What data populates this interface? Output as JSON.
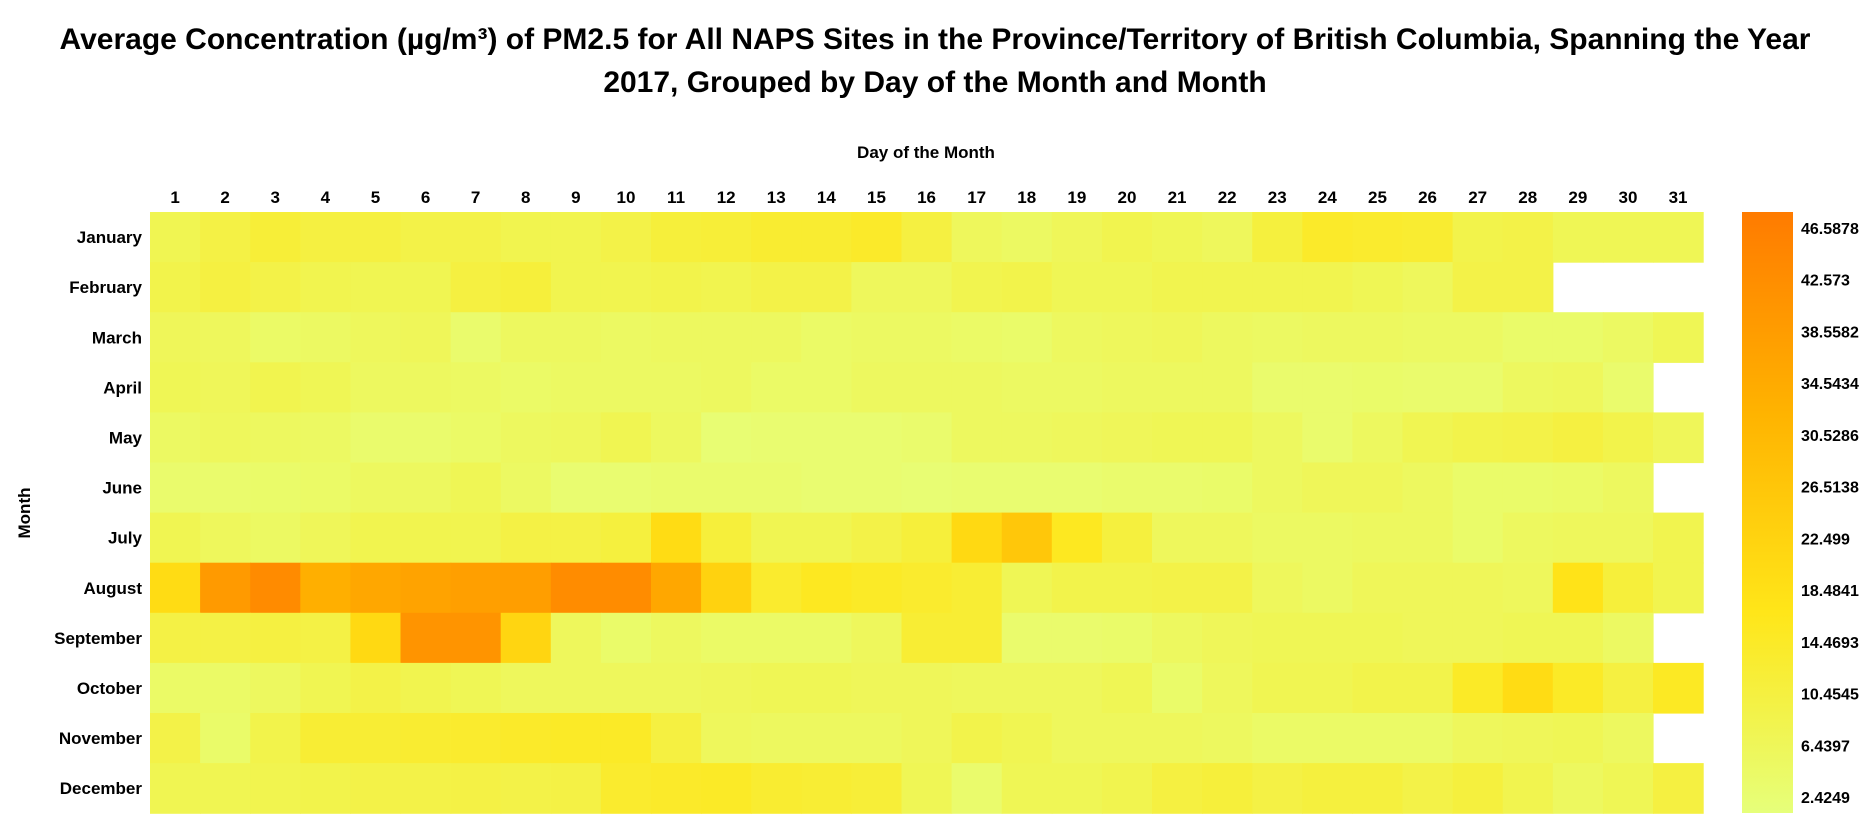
{
  "chart_data": {
    "type": "heatmap",
    "title_line1": "Average Concentration (µg/m³) of PM2.5 for All NAPS Sites in the Province/Territory of British Columbia, Spanning the Year",
    "title_line2": "2017, Grouped by Day of the Month and Month",
    "xlabel": "Day of the Month",
    "ylabel": "Month",
    "x_categories": [
      "1",
      "2",
      "3",
      "4",
      "5",
      "6",
      "7",
      "8",
      "9",
      "10",
      "11",
      "12",
      "13",
      "14",
      "15",
      "16",
      "17",
      "18",
      "19",
      "20",
      "21",
      "22",
      "23",
      "24",
      "25",
      "26",
      "27",
      "28",
      "29",
      "30",
      "31"
    ],
    "y_categories": [
      "January",
      "February",
      "March",
      "April",
      "May",
      "June",
      "July",
      "August",
      "September",
      "October",
      "November",
      "December"
    ],
    "values": [
      [
        8.5,
        10.5,
        12.5,
        11.0,
        11.0,
        10.0,
        10.0,
        9.0,
        9.0,
        10.0,
        12.0,
        12.5,
        13.5,
        13.5,
        14.5,
        11.0,
        7.0,
        6.0,
        7.5,
        9.0,
        8.0,
        7.0,
        11.5,
        14.5,
        14.0,
        13.5,
        9.5,
        10.0,
        8.0,
        8.0,
        8.0
      ],
      [
        9.5,
        11.0,
        10.0,
        9.0,
        8.5,
        8.5,
        11.0,
        12.0,
        9.0,
        9.0,
        9.5,
        9.0,
        10.0,
        10.0,
        7.0,
        7.0,
        9.0,
        9.5,
        8.0,
        8.0,
        9.0,
        9.0,
        9.0,
        9.0,
        8.0,
        7.0,
        10.0,
        10.0,
        null,
        null,
        null
      ],
      [
        7.5,
        7.0,
        5.5,
        6.0,
        7.0,
        7.5,
        4.5,
        6.5,
        6.5,
        6.0,
        6.5,
        6.5,
        6.5,
        5.5,
        6.0,
        6.0,
        5.5,
        5.0,
        6.5,
        7.0,
        7.5,
        6.5,
        6.0,
        6.5,
        6.5,
        6.0,
        6.0,
        5.0,
        5.0,
        6.0,
        8.0
      ],
      [
        8.0,
        7.5,
        9.0,
        8.0,
        6.5,
        6.5,
        6.0,
        5.5,
        6.0,
        6.0,
        6.0,
        6.5,
        5.5,
        5.5,
        6.5,
        6.5,
        6.5,
        6.0,
        6.0,
        6.5,
        6.5,
        6.5,
        4.5,
        4.5,
        5.0,
        4.5,
        4.5,
        6.5,
        7.0,
        4.5,
        null
      ],
      [
        6.0,
        7.0,
        6.5,
        6.0,
        4.5,
        4.5,
        5.5,
        6.5,
        7.0,
        8.5,
        6.5,
        3.5,
        4.0,
        4.0,
        4.0,
        4.5,
        6.5,
        6.5,
        7.0,
        7.5,
        8.0,
        8.0,
        6.5,
        4.5,
        6.5,
        8.5,
        9.5,
        10.0,
        11.0,
        9.5,
        7.5
      ],
      [
        4.5,
        4.5,
        5.0,
        5.5,
        6.5,
        6.5,
        8.0,
        6.0,
        4.0,
        4.0,
        4.5,
        4.5,
        4.5,
        4.0,
        4.0,
        3.5,
        4.0,
        4.0,
        4.0,
        4.5,
        4.5,
        5.0,
        6.5,
        7.5,
        7.5,
        6.5,
        5.0,
        5.0,
        5.5,
        6.5,
        null
      ],
      [
        8.5,
        7.0,
        6.0,
        7.5,
        9.0,
        9.0,
        9.0,
        10.5,
        10.5,
        11.5,
        20.0,
        12.0,
        8.5,
        8.5,
        10.0,
        12.0,
        21.0,
        26.0,
        16.0,
        11.5,
        7.0,
        7.0,
        6.0,
        6.0,
        6.5,
        6.5,
        5.0,
        6.5,
        7.0,
        7.0,
        9.0
      ],
      [
        20.0,
        38.5,
        42.5,
        33.0,
        35.0,
        36.0,
        37.0,
        37.5,
        42.0,
        42.0,
        35.0,
        23.0,
        14.0,
        16.0,
        15.0,
        14.0,
        13.0,
        8.0,
        9.5,
        9.5,
        10.0,
        10.0,
        7.0,
        6.0,
        7.5,
        7.5,
        7.5,
        7.0,
        18.0,
        12.0,
        9.0
      ],
      [
        10.5,
        10.5,
        11.0,
        10.5,
        21.0,
        40.0,
        40.0,
        22.0,
        7.0,
        5.0,
        6.5,
        5.5,
        5.5,
        5.5,
        7.0,
        13.0,
        13.0,
        4.5,
        4.5,
        5.0,
        6.5,
        7.5,
        8.0,
        8.0,
        8.0,
        7.5,
        7.5,
        8.0,
        8.0,
        6.0,
        null
      ],
      [
        5.5,
        5.5,
        6.5,
        8.5,
        10.0,
        9.0,
        8.0,
        7.0,
        7.0,
        7.0,
        7.0,
        7.5,
        8.0,
        8.0,
        7.5,
        7.5,
        7.0,
        7.0,
        7.0,
        8.0,
        5.0,
        7.0,
        8.5,
        8.5,
        9.5,
        9.5,
        15.0,
        20.0,
        15.0,
        11.0,
        15.5
      ],
      [
        10.0,
        5.0,
        9.5,
        13.0,
        13.0,
        13.5,
        14.0,
        14.5,
        15.0,
        15.0,
        11.0,
        7.0,
        6.5,
        6.5,
        6.5,
        7.5,
        9.5,
        8.5,
        7.0,
        7.0,
        7.0,
        6.5,
        5.5,
        5.5,
        5.5,
        5.5,
        7.0,
        7.5,
        8.0,
        6.5,
        null
      ],
      [
        8.5,
        8.5,
        9.0,
        9.5,
        10.0,
        10.0,
        10.5,
        10.0,
        10.5,
        14.0,
        14.5,
        15.0,
        13.5,
        13.0,
        12.5,
        8.0,
        4.5,
        8.0,
        8.0,
        9.0,
        11.0,
        12.0,
        10.5,
        11.5,
        11.5,
        10.0,
        11.5,
        9.0,
        6.5,
        8.0,
        11.0
      ]
    ],
    "colorbar": {
      "ticks": [
        46.5878,
        42.573,
        38.5582,
        34.5434,
        30.5286,
        26.5138,
        22.499,
        18.4841,
        14.4693,
        10.4545,
        6.4397,
        2.4249
      ],
      "tick_labels": [
        "46.5878",
        "42.573",
        "38.5582",
        "34.5434",
        "30.5286",
        "26.5138",
        "22.499",
        "18.4841",
        "14.4693",
        "10.4545",
        "6.4397",
        "2.4249"
      ],
      "range": [
        2.4249,
        46.5878
      ],
      "colors": [
        "#E6FF7A",
        "#FFE619",
        "#FFB300",
        "#FF7B00"
      ]
    }
  }
}
